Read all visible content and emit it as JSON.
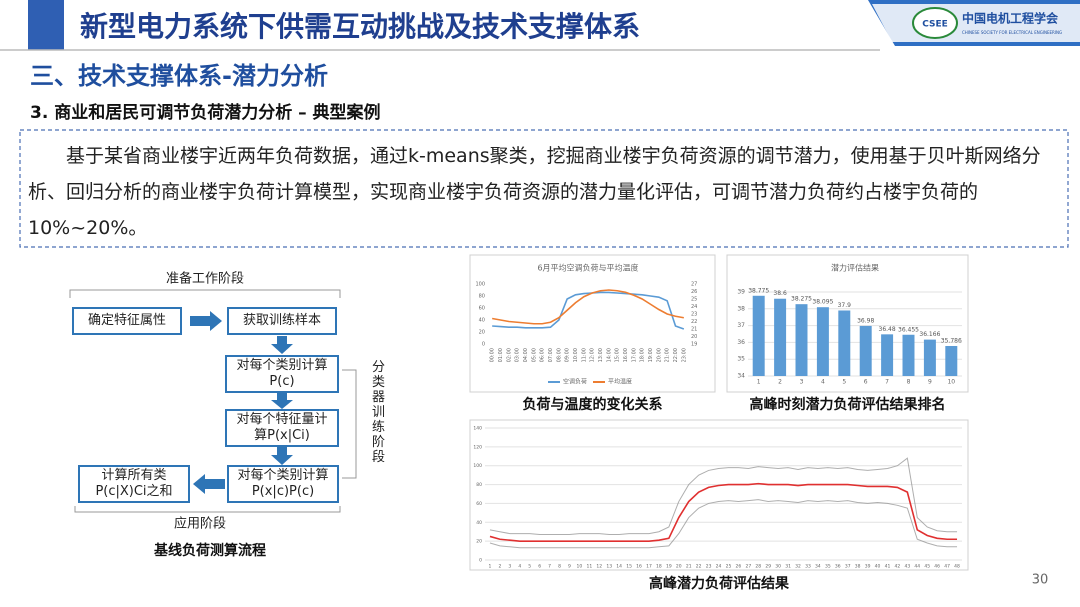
{
  "header": {
    "title": "新型电力系统下供需互动挑战及技术支撑体系",
    "logo": "中国电机工程学会",
    "logo_sub": "CHINESE SOCIETY FOR ELECTRICAL ENGINEERING",
    "logo_mark": "CSEE"
  },
  "section": "三、技术支撑体系-潜力分析",
  "subsection": "3. 商业和居民可调节负荷潜力分析 – 典型案例",
  "paragraph": "基于某省商业楼宇近两年负荷数据，通过k-means聚类，挖掘商业楼宇负荷资源的调节潜力，使用基于贝叶斯网络分析、回归分析的商业楼宇负荷计算模型，实现商业楼宇负荷资源的潜力量化评估，可调节潜力负荷约占楼宇负荷的10%~20%。",
  "diagram": {
    "stage_prep": "准备工作阶段",
    "stage_train": "分类器训练阶段",
    "stage_apply": "应用阶段",
    "caption": "基线负荷测算流程",
    "nodes": [
      {
        "label": "确定特征属性"
      },
      {
        "label": "获取训练样本"
      },
      {
        "label": "对每个类别计算P(c)"
      },
      {
        "label": "对每个特征量计算P(x|Ci)"
      },
      {
        "label": "对每个类别计算P(x|c)P(c)"
      },
      {
        "label": "计算所有类P(c|X)Ci之和"
      }
    ]
  },
  "chart_data": [
    {
      "type": "line",
      "title": "6月平均空调负荷与平均温度",
      "caption": "负荷与温度的变化关系",
      "categories": [
        "00:00",
        "01:00",
        "02:00",
        "03:00",
        "04:00",
        "05:00",
        "06:00",
        "07:00",
        "08:00",
        "09:00",
        "10:00",
        "11:00",
        "12:00",
        "13:00",
        "14:00",
        "15:00",
        "16:00",
        "17:00",
        "18:00",
        "19:00",
        "20:00",
        "21:00",
        "22:00",
        "23:00"
      ],
      "series": [
        {
          "name": "空调负荷",
          "color": "#5b9bd5",
          "values": [
            30,
            29,
            28,
            28,
            27,
            27,
            27,
            28,
            40,
            75,
            82,
            84,
            85,
            86,
            86,
            85,
            84,
            83,
            82,
            80,
            78,
            72,
            30,
            25
          ]
        },
        {
          "name": "平均温度",
          "color": "#ed7d31",
          "axis": "y2",
          "values": [
            22.4,
            22.2,
            22.0,
            21.9,
            21.8,
            21.7,
            21.7,
            21.9,
            22.5,
            23.5,
            24.5,
            25.3,
            25.8,
            26.1,
            26.2,
            26.1,
            25.9,
            25.5,
            25.0,
            24.3,
            23.6,
            23.0,
            22.7,
            22.5
          ]
        }
      ],
      "ylim": [
        0,
        100
      ],
      "yticks": [
        0,
        20,
        40,
        60,
        80,
        100
      ],
      "y2lim": [
        19,
        27
      ],
      "y2ticks": [
        19,
        20,
        21,
        22,
        23,
        24,
        25,
        26,
        27
      ],
      "legend": "bottom"
    },
    {
      "type": "bar",
      "title": "潜力评估结果",
      "caption": "高峰时刻潜力负荷评估结果排名",
      "color": "#5b9bd5",
      "categories": [
        "1",
        "2",
        "3",
        "4",
        "5",
        "6",
        "7",
        "8",
        "9",
        "10"
      ],
      "values": [
        38.775,
        38.6,
        38.275,
        38.095,
        37.9,
        36.98,
        36.48,
        36.455,
        36.166,
        35.786
      ],
      "ylim": [
        34,
        39
      ],
      "yticks": [
        34,
        35,
        36,
        37,
        38,
        39
      ],
      "grid": true
    },
    {
      "type": "line",
      "caption": "高峰潜力负荷评估结果",
      "categories": [
        "1",
        "2",
        "3",
        "4",
        "5",
        "6",
        "7",
        "8",
        "9",
        "10",
        "11",
        "12",
        "13",
        "14",
        "15",
        "16",
        "17",
        "18",
        "19",
        "20",
        "21",
        "22",
        "23",
        "24",
        "25",
        "26",
        "27",
        "28",
        "29",
        "30",
        "31",
        "32",
        "33",
        "34",
        "35",
        "36",
        "37",
        "38",
        "39",
        "40",
        "41",
        "42",
        "43",
        "44",
        "45",
        "46",
        "47",
        "48"
      ],
      "series": [
        {
          "color": "#8c8c8c",
          "values": [
            32,
            30,
            28,
            28,
            28,
            27,
            27,
            27,
            27,
            28,
            28,
            28,
            27,
            27,
            28,
            28,
            28,
            30,
            35,
            62,
            80,
            90,
            95,
            97,
            98,
            98,
            97,
            99,
            98,
            97,
            98,
            96,
            98,
            97,
            98,
            97,
            98,
            96,
            95,
            96,
            97,
            100,
            108,
            45,
            35,
            31,
            30,
            30
          ]
        },
        {
          "color": "#8c8c8c",
          "values": [
            18,
            15,
            14,
            13,
            13,
            13,
            13,
            13,
            13,
            13,
            13,
            13,
            13,
            13,
            13,
            13,
            13,
            14,
            15,
            28,
            45,
            55,
            60,
            62,
            63,
            62,
            63,
            64,
            62,
            63,
            62,
            61,
            63,
            62,
            63,
            62,
            63,
            61,
            60,
            61,
            60,
            58,
            55,
            22,
            18,
            15,
            14,
            14
          ]
        },
        {
          "color": "#e03030",
          "values": [
            25,
            22,
            21,
            20,
            20,
            20,
            20,
            20,
            20,
            20,
            20,
            20,
            20,
            20,
            20,
            20,
            20,
            21,
            23,
            45,
            62,
            72,
            77,
            79,
            80,
            80,
            80,
            81,
            80,
            80,
            80,
            79,
            80,
            80,
            80,
            80,
            80,
            79,
            78,
            78,
            78,
            77,
            72,
            32,
            26,
            23,
            22,
            22
          ]
        }
      ],
      "ylim": [
        0,
        140
      ],
      "yticks": [
        0,
        20,
        40,
        60,
        80,
        100,
        120,
        140
      ],
      "grid": true
    }
  ],
  "page_number": "30"
}
